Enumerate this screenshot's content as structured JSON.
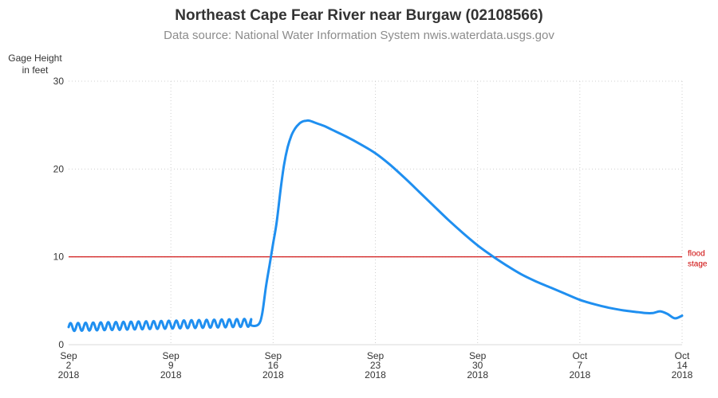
{
  "chart_data": {
    "type": "line",
    "title": "Northeast Cape Fear River near Burgaw (02108566)",
    "subtitle": "Data source: National Water Information System nwis.waterdata.usgs.gov",
    "ylabel_line1": "Gage Height",
    "ylabel_line2": "in feet",
    "ylim": [
      0,
      30
    ],
    "xlim": [
      "2018-09-02",
      "2018-10-14"
    ],
    "grid": true,
    "y_ticks": [
      "0",
      "10",
      "20",
      "30"
    ],
    "x_ticks": [
      {
        "date": "2018-09-02",
        "month": "Sep",
        "day": "2",
        "year": "2018"
      },
      {
        "date": "2018-09-09",
        "month": "Sep",
        "day": "9",
        "year": "2018"
      },
      {
        "date": "2018-09-16",
        "month": "Sep",
        "day": "16",
        "year": "2018"
      },
      {
        "date": "2018-09-23",
        "month": "Sep",
        "day": "23",
        "year": "2018"
      },
      {
        "date": "2018-09-30",
        "month": "Sep",
        "day": "30",
        "year": "2018"
      },
      {
        "date": "2018-10-07",
        "month": "Oct",
        "day": "7",
        "year": "2018"
      },
      {
        "date": "2018-10-14",
        "month": "Oct",
        "day": "14",
        "year": "2018"
      }
    ],
    "reference_line": {
      "value": 10,
      "label_line1": "flood",
      "label_line2": "stage",
      "color": "#cc0000"
    },
    "line_color": "#1f8ff0",
    "series": [
      {
        "x": [
          "2018-09-14 12:00",
          "2018-09-15 00:00",
          "2018-09-15 06:00",
          "2018-09-15 12:00",
          "2018-09-15 18:00",
          "2018-09-16 00:00",
          "2018-09-16 06:00",
          "2018-09-16 12:00",
          "2018-09-16 18:00",
          "2018-09-17 00:00",
          "2018-09-17 06:00",
          "2018-09-17 12:00",
          "2018-09-17 18:00",
          "2018-09-18 00:00",
          "2018-09-18 06:00",
          "2018-09-18 12:00",
          "2018-09-19 00:00",
          "2018-09-19 12:00",
          "2018-09-20 00:00",
          "2018-09-21 00:00",
          "2018-09-22 00:00",
          "2018-09-23 00:00",
          "2018-09-24 00:00",
          "2018-09-25 00:00",
          "2018-09-26 00:00",
          "2018-09-27 00:00",
          "2018-09-28 00:00",
          "2018-09-29 00:00",
          "2018-09-30 00:00",
          "2018-10-01 00:00",
          "2018-10-02 00:00",
          "2018-10-03 00:00",
          "2018-10-04 00:00",
          "2018-10-05 00:00",
          "2018-10-06 00:00",
          "2018-10-07 00:00",
          "2018-10-08 00:00",
          "2018-10-09 00:00",
          "2018-10-10 00:00",
          "2018-10-11 00:00",
          "2018-10-11 12:00",
          "2018-10-12 00:00",
          "2018-10-12 12:00",
          "2018-10-13 00:00",
          "2018-10-13 12:00",
          "2018-10-14 00:00"
        ],
        "y": [
          2.2,
          2.3,
          3.5,
          6.5,
          9.0,
          11.5,
          14.0,
          17.5,
          20.5,
          22.5,
          23.8,
          24.6,
          25.1,
          25.4,
          25.5,
          25.5,
          25.2,
          24.9,
          24.5,
          23.7,
          22.8,
          21.8,
          20.5,
          19.0,
          17.4,
          15.8,
          14.2,
          12.7,
          11.3,
          10.1,
          9.0,
          8.0,
          7.2,
          6.5,
          5.8,
          5.1,
          4.6,
          4.2,
          3.9,
          3.7,
          3.6,
          3.6,
          3.8,
          3.5,
          3.0,
          3.3
        ]
      }
    ],
    "oscillation_note_range": [
      "2018-09-02",
      "2018-09-14 12:00"
    ],
    "oscillation_mean": 2.0,
    "oscillation_rising_to": 2.5
  }
}
